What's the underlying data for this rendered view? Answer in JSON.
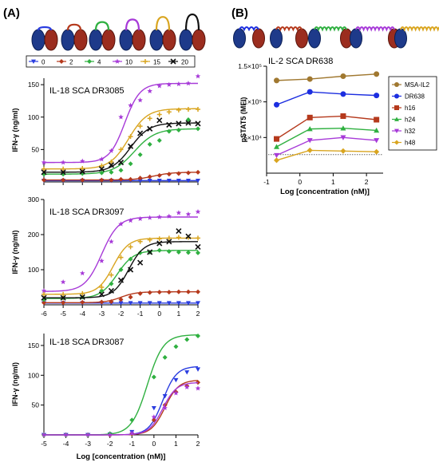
{
  "panel_a_label": "(A)",
  "panel_b_label": "(B)",
  "colors": {
    "0": "#2a3de0",
    "2": "#b5391c",
    "4": "#2fb040",
    "10": "#a73ad8",
    "15": "#d9a520",
    "20": "#111111"
  },
  "legend_a": [
    {
      "label": "0",
      "color": "#2a3de0",
      "marker": "tri-down"
    },
    {
      "label": "2",
      "color": "#b5391c",
      "marker": "diamond"
    },
    {
      "label": "4",
      "color": "#2fb040",
      "marker": "diamond"
    },
    {
      "label": "10",
      "color": "#a73ad8",
      "marker": "star"
    },
    {
      "label": "15",
      "color": "#d9a520",
      "marker": "plus"
    },
    {
      "label": "20",
      "color": "#111111",
      "marker": "cross"
    }
  ],
  "chart_data": [
    {
      "type": "scatter",
      "title": "IL-18 SCA DR3085",
      "ylabel": "IFN-γ (ng/ml)",
      "xlim": [
        -6,
        2
      ],
      "ylim": [
        0,
        160
      ],
      "yticks": [
        50,
        100,
        150
      ],
      "xticks": [],
      "series": [
        {
          "name": "0",
          "color": "#2a3de0",
          "marker": "tri-down",
          "x": [
            -6,
            -5,
            -4,
            -3,
            -2.5,
            -2,
            -1.5,
            -1,
            -0.5,
            0,
            0.5,
            1,
            1.5,
            2
          ],
          "y": [
            2,
            2,
            2,
            2,
            2,
            2,
            2,
            2,
            2,
            2,
            2,
            2,
            2,
            2
          ],
          "fit": {
            "bottom": 2,
            "top": 2,
            "ec50": -1.5,
            "hill": 1
          }
        },
        {
          "name": "2",
          "color": "#b5391c",
          "marker": "diamond",
          "x": [
            -6,
            -5,
            -4,
            -3,
            -2.5,
            -2,
            -1.5,
            -1,
            -0.5,
            0,
            0.5,
            1,
            1.5,
            2
          ],
          "y": [
            3,
            3,
            3,
            3,
            3,
            4,
            4,
            6,
            8,
            10,
            12,
            13,
            14,
            15
          ],
          "fit": {
            "bottom": 3,
            "top": 15,
            "ec50": -0.3,
            "hill": 0.9
          }
        },
        {
          "name": "4",
          "color": "#2fb040",
          "marker": "diamond",
          "x": [
            -6,
            -5,
            -4,
            -3,
            -2.5,
            -2,
            -1.5,
            -1,
            -0.5,
            0,
            0.5,
            1,
            1.5,
            2
          ],
          "y": [
            12,
            12,
            13,
            14,
            15,
            18,
            28,
            42,
            58,
            64,
            78,
            80,
            96,
            82
          ],
          "fit": {
            "bottom": 12,
            "top": 82,
            "ec50": -1.3,
            "hill": 0.8
          }
        },
        {
          "name": "10",
          "color": "#a73ad8",
          "marker": "star",
          "x": [
            -6,
            -5,
            -4,
            -3,
            -2.5,
            -2,
            -1.5,
            -1,
            -0.5,
            0,
            0.5,
            1,
            1.5,
            2
          ],
          "y": [
            30,
            30,
            32,
            35,
            48,
            100,
            118,
            126,
            140,
            148,
            150,
            151,
            152,
            163
          ],
          "fit": {
            "bottom": 30,
            "top": 152,
            "ec50": -1.8,
            "hill": 1.1
          }
        },
        {
          "name": "15",
          "color": "#d9a520",
          "marker": "plus",
          "x": [
            -6,
            -5,
            -4,
            -3,
            -2.5,
            -2,
            -1.5,
            -1,
            -0.5,
            0,
            0.5,
            1,
            1.5,
            2
          ],
          "y": [
            20,
            20,
            21,
            25,
            31,
            50,
            70,
            86,
            98,
            104,
            108,
            111,
            112,
            112
          ],
          "fit": {
            "bottom": 20,
            "top": 113,
            "ec50": -1.6,
            "hill": 0.9
          }
        },
        {
          "name": "20",
          "color": "#111111",
          "marker": "cross",
          "x": [
            -6,
            -5,
            -4,
            -3,
            -2.5,
            -2,
            -1.5,
            -1,
            -0.5,
            0,
            0.5,
            1,
            1.5,
            2
          ],
          "y": [
            15,
            15,
            16,
            20,
            26,
            30,
            55,
            75,
            82,
            95,
            88,
            90,
            91,
            90
          ],
          "fit": {
            "bottom": 15,
            "top": 91,
            "ec50": -1.5,
            "hill": 0.9
          }
        }
      ]
    },
    {
      "type": "scatter",
      "title": "IL-18 SCA DR3097",
      "ylabel": "IFN-γ (ng/ml)",
      "xlim": [
        -6,
        2
      ],
      "ylim": [
        0,
        300
      ],
      "yticks": [
        100,
        200,
        300
      ],
      "xticks": [
        -6,
        -5,
        -4,
        -3,
        -2,
        -1,
        0,
        1,
        2
      ],
      "series": [
        {
          "name": "0",
          "color": "#2a3de0",
          "marker": "tri-down",
          "x": [
            -6,
            -5,
            -4,
            -3,
            -2.5,
            -2,
            -1.5,
            -1,
            -0.5,
            0,
            0.5,
            1,
            1.5,
            2
          ],
          "y": [
            5,
            5,
            5,
            5,
            5,
            5,
            5,
            5,
            5,
            5,
            5,
            5,
            5,
            5
          ],
          "fit": {
            "bottom": 5,
            "top": 5,
            "ec50": -1,
            "hill": 1
          }
        },
        {
          "name": "2",
          "color": "#b5391c",
          "marker": "diamond",
          "x": [
            -6,
            -5,
            -4,
            -3,
            -2.5,
            -2,
            -1.5,
            -1,
            -0.5,
            0,
            0.5,
            1,
            1.5,
            2
          ],
          "y": [
            6,
            6,
            7,
            8,
            9,
            15,
            22,
            32,
            35,
            36,
            36,
            37,
            37,
            37
          ],
          "fit": {
            "bottom": 6,
            "top": 37,
            "ec50": -2.0,
            "hill": 1.1
          }
        },
        {
          "name": "4",
          "color": "#2fb040",
          "marker": "diamond",
          "x": [
            -6,
            -5,
            -4,
            -3,
            -2.5,
            -2,
            -1.5,
            -1,
            -0.5,
            0,
            0.5,
            1,
            1.5,
            2
          ],
          "y": [
            15,
            20,
            22,
            40,
            60,
            100,
            130,
            148,
            150,
            155,
            152,
            150,
            149,
            148
          ],
          "fit": {
            "bottom": 18,
            "top": 155,
            "ec50": -2.2,
            "hill": 1.0
          }
        },
        {
          "name": "10",
          "color": "#a73ad8",
          "marker": "star",
          "x": [
            -6,
            -5,
            -4,
            -3,
            -2.5,
            -2,
            -1.5,
            -1,
            -0.5,
            0,
            0.5,
            1,
            1.5,
            2
          ],
          "y": [
            40,
            65,
            90,
            125,
            180,
            230,
            240,
            245,
            248,
            250,
            252,
            262,
            258,
            265
          ],
          "fit": {
            "bottom": 38,
            "top": 250,
            "ec50": -3.0,
            "hill": 1.0
          }
        },
        {
          "name": "15",
          "color": "#d9a520",
          "marker": "plus",
          "x": [
            -6,
            -5,
            -4,
            -3,
            -2.5,
            -2,
            -1.5,
            -1,
            -0.5,
            0,
            0.5,
            1,
            1.5,
            2
          ],
          "y": [
            30,
            30,
            32,
            50,
            85,
            135,
            165,
            180,
            185,
            188,
            190,
            192,
            192,
            190
          ],
          "fit": {
            "bottom": 30,
            "top": 190,
            "ec50": -2.4,
            "hill": 1.1
          }
        },
        {
          "name": "20",
          "color": "#111111",
          "marker": "cross",
          "x": [
            -6,
            -5,
            -4,
            -3,
            -2.5,
            -2,
            -1.5,
            -1,
            -0.5,
            0,
            0.5,
            1,
            1.5,
            2
          ],
          "y": [
            20,
            20,
            22,
            30,
            40,
            70,
            100,
            120,
            150,
            175,
            180,
            210,
            195,
            165
          ],
          "fit": {
            "bottom": 20,
            "top": 180,
            "ec50": -1.6,
            "hill": 1.1
          }
        }
      ]
    },
    {
      "type": "scatter",
      "title": "IL-18 SCA DR3087",
      "ylabel": "IFN-γ (ng/ml)",
      "xlabel": "Log [concentration (nM)]",
      "xlim": [
        -5,
        2
      ],
      "ylim": [
        0,
        170
      ],
      "yticks": [
        50,
        100,
        150
      ],
      "xticks": [
        -5,
        -4,
        -3,
        -2,
        -1,
        0,
        1,
        2
      ],
      "series": [
        {
          "name": "0",
          "color": "#2a3de0",
          "marker": "tri-down",
          "x": [
            -5,
            -4,
            -3,
            -2,
            -1,
            0,
            0.5,
            1,
            1.5,
            2
          ],
          "y": [
            0,
            0,
            0,
            1,
            5,
            45,
            65,
            92,
            105,
            110
          ],
          "fit": {
            "bottom": 0,
            "top": 115,
            "ec50": 0.4,
            "hill": 1.4
          }
        },
        {
          "name": "2",
          "color": "#b5391c",
          "marker": "diamond",
          "x": [
            -5,
            -4,
            -3,
            -2,
            -1,
            0,
            0.5,
            1,
            1.5,
            2
          ],
          "y": [
            0,
            0,
            0,
            0,
            2,
            25,
            50,
            72,
            82,
            88
          ],
          "fit": {
            "bottom": 0,
            "top": 92,
            "ec50": 0.5,
            "hill": 1.4
          }
        },
        {
          "name": "4",
          "color": "#2fb040",
          "marker": "diamond",
          "x": [
            -5,
            -4,
            -3,
            -2,
            -1,
            0,
            0.5,
            1,
            1.5,
            2
          ],
          "y": [
            0,
            0,
            0,
            2,
            25,
            97,
            130,
            148,
            160,
            166
          ],
          "fit": {
            "bottom": 0,
            "top": 168,
            "ec50": -0.3,
            "hill": 1.2
          }
        },
        {
          "name": "10",
          "color": "#a73ad8",
          "marker": "star",
          "x": [
            -5,
            -4,
            -3,
            -2,
            -1,
            0,
            0.5,
            1,
            1.5,
            2
          ],
          "y": [
            0,
            0,
            0,
            0,
            3,
            30,
            45,
            70,
            80,
            78
          ],
          "fit": {
            "bottom": 0,
            "top": 88,
            "ec50": 0.4,
            "hill": 1.4
          }
        }
      ]
    },
    {
      "type": "line",
      "title": "IL-2 SCA DR638",
      "ylabel": "pSTAT5 (MFI)",
      "xlabel": "Log [concentration (nM)]",
      "xlim": [
        -1,
        2.5
      ],
      "ylim": [
        0,
        150000
      ],
      "yticks": [
        50000,
        100000,
        150000
      ],
      "ytick_labels": [
        "5×10⁴",
        "1×10⁵",
        "1.5×10⁵"
      ],
      "xticks": [
        -1,
        0,
        1,
        2
      ],
      "baseline": 26000,
      "series": [
        {
          "name": "MSA-IL2",
          "color": "#a07830",
          "marker": "circle",
          "x": [
            -0.7,
            0.3,
            1.3,
            2.3
          ],
          "y": [
            130000,
            132000,
            136000,
            139000
          ]
        },
        {
          "name": "DR638",
          "color": "#1c2ee0",
          "marker": "circle",
          "x": [
            -0.7,
            0.3,
            1.3,
            2.3
          ],
          "y": [
            96000,
            114000,
            111000,
            109000
          ]
        },
        {
          "name": "h16",
          "color": "#b5391c",
          "marker": "square",
          "x": [
            -0.7,
            0.3,
            1.3,
            2.3
          ],
          "y": [
            48000,
            78000,
            80000,
            75000
          ]
        },
        {
          "name": "h24",
          "color": "#2fb040",
          "marker": "tri-up",
          "x": [
            -0.7,
            0.3,
            1.3,
            2.3
          ],
          "y": [
            37000,
            62000,
            63000,
            60000
          ]
        },
        {
          "name": "h32",
          "color": "#a73ad8",
          "marker": "tri-down",
          "x": [
            -0.7,
            0.3,
            1.3,
            2.3
          ],
          "y": [
            25000,
            46000,
            50000,
            46000
          ]
        },
        {
          "name": "h48",
          "color": "#d9a520",
          "marker": "diamond",
          "x": [
            -0.7,
            0.3,
            1.3,
            2.3
          ],
          "y": [
            18000,
            32000,
            31000,
            30000
          ]
        }
      ]
    }
  ]
}
